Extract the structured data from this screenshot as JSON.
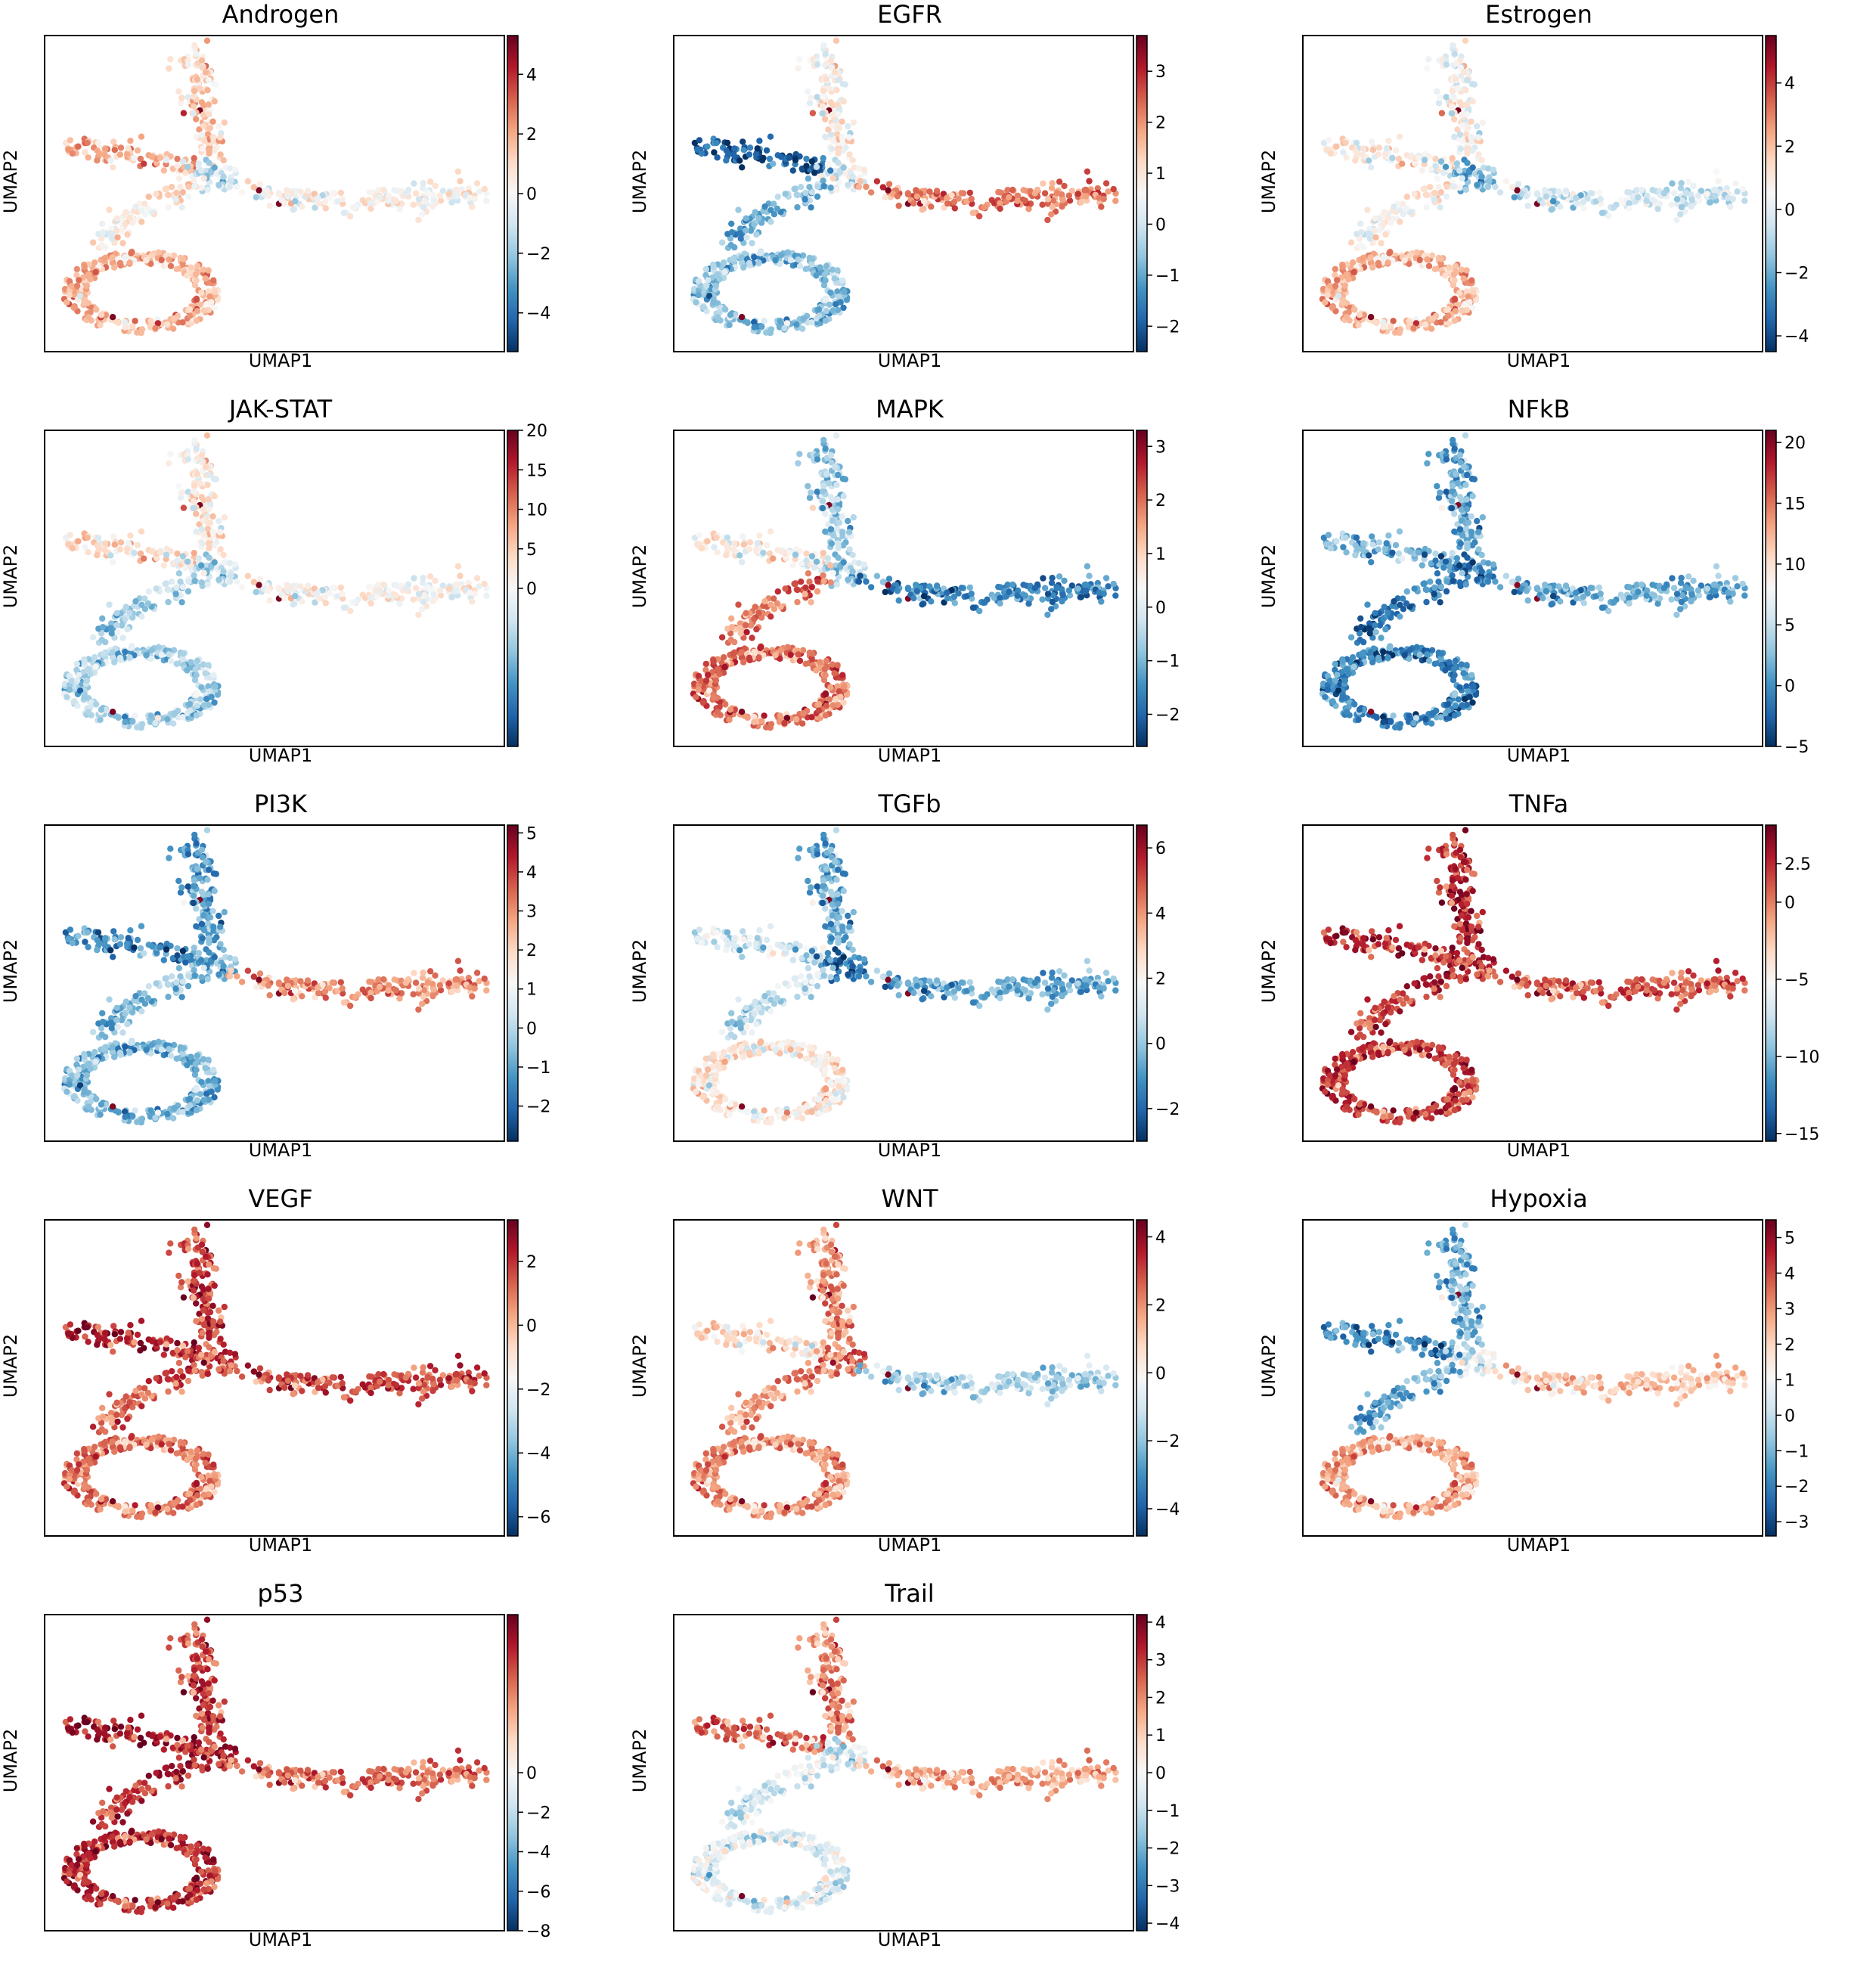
{
  "figure": {
    "x_axis_label": "UMAP1",
    "y_axis_label": "UMAP2",
    "colormap": "RdBu_r",
    "colormap_stops": [
      "#053061",
      "#2166ac",
      "#4393c3",
      "#92c5de",
      "#d1e5f0",
      "#f7f7f7",
      "#fddbc7",
      "#f4a582",
      "#d6604d",
      "#b2182b",
      "#67001f"
    ]
  },
  "chart_data": [
    {
      "type": "scatter",
      "title": "Androgen",
      "cbar_ticks": [
        -4,
        -2,
        0,
        2,
        4
      ],
      "cbar_range": [
        -5.3,
        5.3
      ],
      "profile": {
        "top_arm": 1.2,
        "left_arm": 1.8,
        "junction": -1.2,
        "right_arm": 0.2,
        "diag_arm": 0.6,
        "loop": 1.8
      }
    },
    {
      "type": "scatter",
      "title": "EGFR",
      "cbar_ticks": [
        -2,
        -1,
        0,
        1,
        2,
        3
      ],
      "cbar_range": [
        -2.5,
        3.7
      ],
      "profile": {
        "top_arm": 0.8,
        "left_arm": -2.0,
        "junction": 0.3,
        "right_arm": 2.2,
        "diag_arm": -0.8,
        "loop": -0.6
      }
    },
    {
      "type": "scatter",
      "title": "Estrogen",
      "cbar_ticks": [
        -4,
        -2,
        0,
        2,
        4
      ],
      "cbar_range": [
        -4.5,
        5.5
      ],
      "profile": {
        "top_arm": 0.6,
        "left_arm": 0.8,
        "junction": -1.8,
        "right_arm": -0.4,
        "diag_arm": 0.8,
        "loop": 2.2
      }
    },
    {
      "type": "scatter",
      "title": "JAK-STAT",
      "cbar_ticks": [
        0,
        5,
        10,
        15,
        20
      ],
      "cbar_range": [
        -20,
        20
      ],
      "profile": {
        "top_arm": 2.0,
        "left_arm": 3.0,
        "junction": -5.0,
        "right_arm": 0.5,
        "diag_arm": -6.0,
        "loop": -6.0
      }
    },
    {
      "type": "scatter",
      "title": "MAPK",
      "cbar_ticks": [
        -2,
        -1,
        0,
        1,
        2,
        3
      ],
      "cbar_range": [
        -2.6,
        3.3
      ],
      "profile": {
        "top_arm": -0.6,
        "left_arm": 0.5,
        "junction": -0.6,
        "right_arm": -1.6,
        "diag_arm": 2.0,
        "loop": 2.0
      }
    },
    {
      "type": "scatter",
      "title": "NFkB",
      "cbar_ticks": [
        -5,
        0,
        5,
        10,
        15,
        20
      ],
      "cbar_range": [
        -5,
        21
      ],
      "profile": {
        "top_arm": 1.5,
        "left_arm": 2.0,
        "junction": -1.0,
        "right_arm": 1.5,
        "diag_arm": -1.0,
        "loop": -0.5
      }
    },
    {
      "type": "scatter",
      "title": "PI3K",
      "cbar_ticks": [
        -2,
        -1,
        0,
        1,
        2,
        3,
        4,
        5
      ],
      "cbar_range": [
        -2.9,
        5.2
      ],
      "profile": {
        "top_arm": -1.0,
        "left_arm": -1.4,
        "junction": -0.8,
        "right_arm": 3.0,
        "diag_arm": -0.5,
        "loop": -0.6
      }
    },
    {
      "type": "scatter",
      "title": "TGFb",
      "cbar_ticks": [
        -2,
        0,
        2,
        4,
        6
      ],
      "cbar_range": [
        -3.0,
        6.7
      ],
      "profile": {
        "top_arm": -0.5,
        "left_arm": 1.0,
        "junction": -1.8,
        "right_arm": -0.6,
        "diag_arm": 0.8,
        "loop": 2.4
      }
    },
    {
      "type": "scatter",
      "title": "TNFa",
      "cbar_ticks": [
        -15,
        -10,
        -5,
        0,
        2.5
      ],
      "cbar_range": [
        -15.5,
        5
      ],
      "profile": {
        "top_arm": 2.6,
        "left_arm": 2.4,
        "junction": 2.0,
        "right_arm": 1.0,
        "diag_arm": 2.2,
        "loop": 2.0
      }
    },
    {
      "type": "scatter",
      "title": "VEGF",
      "cbar_ticks": [
        -6,
        -4,
        -2,
        0,
        2
      ],
      "cbar_range": [
        -6.6,
        3.3
      ],
      "profile": {
        "top_arm": 1.8,
        "left_arm": 2.2,
        "junction": 1.6,
        "right_arm": 1.6,
        "diag_arm": 1.4,
        "loop": 1.0
      }
    },
    {
      "type": "scatter",
      "title": "WNT",
      "cbar_ticks": [
        -4,
        -2,
        0,
        2,
        4
      ],
      "cbar_range": [
        -4.8,
        4.5
      ],
      "profile": {
        "top_arm": 2.0,
        "left_arm": 0.6,
        "junction": 2.4,
        "right_arm": -1.6,
        "diag_arm": 2.0,
        "loop": 2.0
      }
    },
    {
      "type": "scatter",
      "title": "Hypoxia",
      "cbar_ticks": [
        -3,
        -2,
        -1,
        0,
        1,
        2,
        3,
        4,
        5
      ],
      "cbar_range": [
        -3.4,
        5.5
      ],
      "profile": {
        "top_arm": -1.0,
        "left_arm": -1.8,
        "junction": 0.5,
        "right_arm": 2.2,
        "diag_arm": -1.2,
        "loop": 2.8
      }
    },
    {
      "type": "scatter",
      "title": "p53",
      "cbar_ticks": [
        -8,
        -6,
        -4,
        -2,
        0
      ],
      "cbar_range": [
        -8,
        8
      ],
      "profile": {
        "top_arm": 5.5,
        "left_arm": 6.5,
        "junction": 6.0,
        "right_arm": 4.5,
        "diag_arm": 6.0,
        "loop": 6.0
      }
    },
    {
      "type": "scatter",
      "title": "Trail",
      "cbar_ticks": [
        -4,
        -3,
        -2,
        -1,
        0,
        1,
        2,
        3,
        4
      ],
      "cbar_range": [
        -4.2,
        4.2
      ],
      "profile": {
        "top_arm": 2.0,
        "left_arm": 2.4,
        "junction": -0.8,
        "right_arm": 1.6,
        "diag_arm": -0.6,
        "loop": -0.4
      }
    }
  ]
}
